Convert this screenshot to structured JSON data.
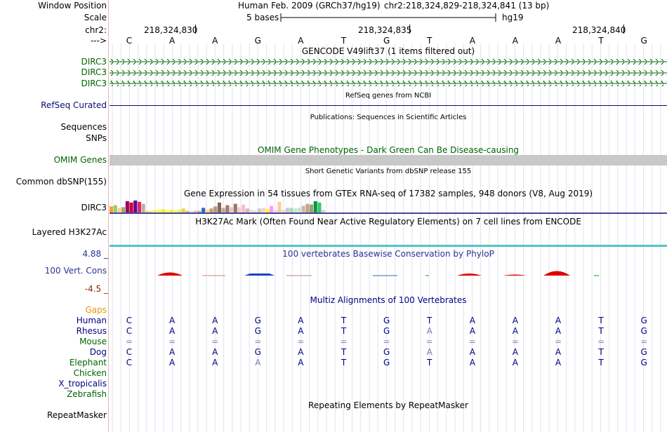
{
  "header": {
    "window_position_label": "Window Position",
    "assembly": "Human Feb. 2009 (GRCh37/hg19)",
    "position": "chr2:218,324,829-218,324,841 (13 bp)",
    "scale_label": "Scale",
    "scale_text": "5 bases",
    "scale_db": "hg19",
    "chrom_label": "chr2:",
    "strand_label": "--->",
    "coord_labels": [
      "218,324,830",
      "218,324,835",
      "218,324,840"
    ]
  },
  "bases": [
    "C",
    "A",
    "A",
    "G",
    "A",
    "T",
    "G",
    "T",
    "A",
    "A",
    "A",
    "T",
    "G"
  ],
  "tracks": {
    "gencode": {
      "title": "GENCODE V49lift37 (1 items filtered out)",
      "items": [
        "DIRC3",
        "DIRC3",
        "DIRC3"
      ]
    },
    "refseq": {
      "title": "RefSeq genes from NCBI",
      "label": "RefSeq Curated"
    },
    "pubs": {
      "title": "Publications: Sequences in Scientific Articles",
      "label1": "Sequences",
      "label2": "SNPs"
    },
    "omim": {
      "title": "OMIM Gene Phenotypes - Dark Green Can Be Disease-causing",
      "label": "OMIM Genes"
    },
    "dbsnp": {
      "title": "Short Genetic Variants from dbSNP release 155",
      "label": "Common dbSNP(155)"
    },
    "gtex": {
      "title": "Gene Expression in 54 tissues from GTEx RNA-seq of 17382 samples, 948 donors (V8, Aug 2019)",
      "label": "DIRC3"
    },
    "h3k27ac": {
      "title": "H3K27Ac Mark (Often Found Near Active Regulatory Elements) on 7 cell lines from ENCODE",
      "label": "Layered H3K27Ac"
    },
    "phylop": {
      "title": "100 vertebrates Basewise Conservation by PhyloP",
      "label": "100 Vert. Cons",
      "max": "4.88 _",
      "min": "-4.5 _"
    },
    "multiz": {
      "title": "Multiz Alignments of 100 Vertebrates",
      "gaps_label": "Gaps",
      "species": [
        {
          "name": "Human",
          "color": "#000080",
          "seq": [
            "C",
            "A",
            "A",
            "G",
            "A",
            "T",
            "G",
            "T",
            "A",
            "A",
            "A",
            "T",
            "G"
          ]
        },
        {
          "name": "Rhesus",
          "color": "#000080",
          "seq": [
            "C",
            "A",
            "A",
            "G",
            "A",
            "T",
            "G",
            "A",
            "A",
            "A",
            "A",
            "T",
            "G"
          ]
        },
        {
          "name": "Mouse",
          "color": "#006400",
          "seq": [
            "=",
            "=",
            "=",
            "=",
            "=",
            "=",
            "=",
            "=",
            "=",
            "=",
            "=",
            "=",
            "="
          ]
        },
        {
          "name": "Dog",
          "color": "#000080",
          "seq": [
            "C",
            "A",
            "A",
            "G",
            "A",
            "T",
            "G",
            "A",
            "A",
            "A",
            "A",
            "T",
            "G"
          ]
        },
        {
          "name": "Elephant",
          "color": "#006400",
          "seq": [
            "C",
            "A",
            "A",
            "A",
            "A",
            "T",
            "G",
            "T",
            "A",
            "A",
            "A",
            "T",
            "G"
          ]
        },
        {
          "name": "Chicken",
          "color": "#006400",
          "seq": []
        },
        {
          "name": "X_tropicalis",
          "color": "#000080",
          "seq": []
        },
        {
          "name": "Zebrafish",
          "color": "#006400",
          "seq": []
        }
      ]
    },
    "repeatmasker": {
      "title": "Repeating Elements by RepeatMasker",
      "label": "RepeatMasker"
    }
  },
  "colors": {
    "gencode": "#006400",
    "refseq": "#0c0c78",
    "omim": "#006400",
    "phylop_label": "#2e3192",
    "phylop_max": "#2e3192",
    "phylop_min": "#8b2500",
    "gaps": "#e69500",
    "h3k27ac": "#52c5c4"
  },
  "gtex_bars": [
    {
      "c": "#ff9933",
      "v": 0.45
    },
    {
      "c": "#99cc66",
      "v": 0.55
    },
    {
      "c": "#ffcc99",
      "v": 0.35
    },
    {
      "c": "#99aa66",
      "v": 0.4
    },
    {
      "c": "#990066",
      "v": 0.85
    },
    {
      "c": "#cc0033",
      "v": 0.75
    },
    {
      "c": "#660099",
      "v": 0.9
    },
    {
      "c": "#cc3366",
      "v": 0.8
    },
    {
      "c": "#ccaa99",
      "v": 0.65
    },
    {
      "c": "#ffcc66",
      "v": 0.12
    },
    {
      "c": "#ffee66",
      "v": 0.15
    },
    {
      "c": "#eeee66",
      "v": 0.18
    },
    {
      "c": "#ffff33",
      "v": 0.22
    },
    {
      "c": "#eeee33",
      "v": 0.25
    },
    {
      "c": "#ffff66",
      "v": 0.2
    },
    {
      "c": "#ffee33",
      "v": 0.22
    },
    {
      "c": "#eeff66",
      "v": 0.18
    },
    {
      "c": "#ccff66",
      "v": 0.2
    },
    {
      "c": "#ffcc33",
      "v": 0.3
    },
    {
      "c": "#bbbbbb",
      "v": 0.12
    },
    {
      "c": "#dddddd",
      "v": 0.1
    },
    {
      "c": "#cccccc",
      "v": 0.15
    },
    {
      "c": "#aaaaaa",
      "v": 0.12
    },
    {
      "c": "#3366cc",
      "v": 0.35
    },
    {
      "c": "#ffdd66",
      "v": 0.2
    },
    {
      "c": "#cc9966",
      "v": 0.3
    },
    {
      "c": "#aa9988",
      "v": 0.45
    },
    {
      "c": "#886655",
      "v": 0.75
    },
    {
      "c": "#bbaa99",
      "v": 0.35
    },
    {
      "c": "#aa7766",
      "v": 0.55
    },
    {
      "c": "#ddcccc",
      "v": 0.4
    },
    {
      "c": "#997766",
      "v": 0.65
    },
    {
      "c": "#eecccc",
      "v": 0.4
    },
    {
      "c": "#ffbbcc",
      "v": 0.6
    },
    {
      "c": "#ccbbbb",
      "v": 0.3
    },
    {
      "c": "#eedddd",
      "v": 0.2
    },
    {
      "c": "#dddddd",
      "v": 0.15
    },
    {
      "c": "#cccccc",
      "v": 0.3
    },
    {
      "c": "#ffcccc",
      "v": 0.35
    },
    {
      "c": "#ffff00",
      "v": 0.25
    },
    {
      "c": "#ff99ff",
      "v": 0.5
    },
    {
      "c": "#ffccff",
      "v": 0.2
    },
    {
      "c": "#ffcc99",
      "v": 0.8
    },
    {
      "c": "#dddddd",
      "v": 0.2
    },
    {
      "c": "#cccccc",
      "v": 0.35
    },
    {
      "c": "#aaddaa",
      "v": 0.35
    },
    {
      "c": "#bbeecc",
      "v": 0.3
    },
    {
      "c": "#ccddee",
      "v": 0.35
    },
    {
      "c": "#ccbb99",
      "v": 0.5
    },
    {
      "c": "#bbaa88",
      "v": 0.65
    },
    {
      "c": "#aa9977",
      "v": 0.6
    },
    {
      "c": "#009944",
      "v": 0.85
    },
    {
      "c": "#33cc66",
      "v": 0.75
    },
    {
      "c": "#ddccdd",
      "v": 0.2
    }
  ]
}
